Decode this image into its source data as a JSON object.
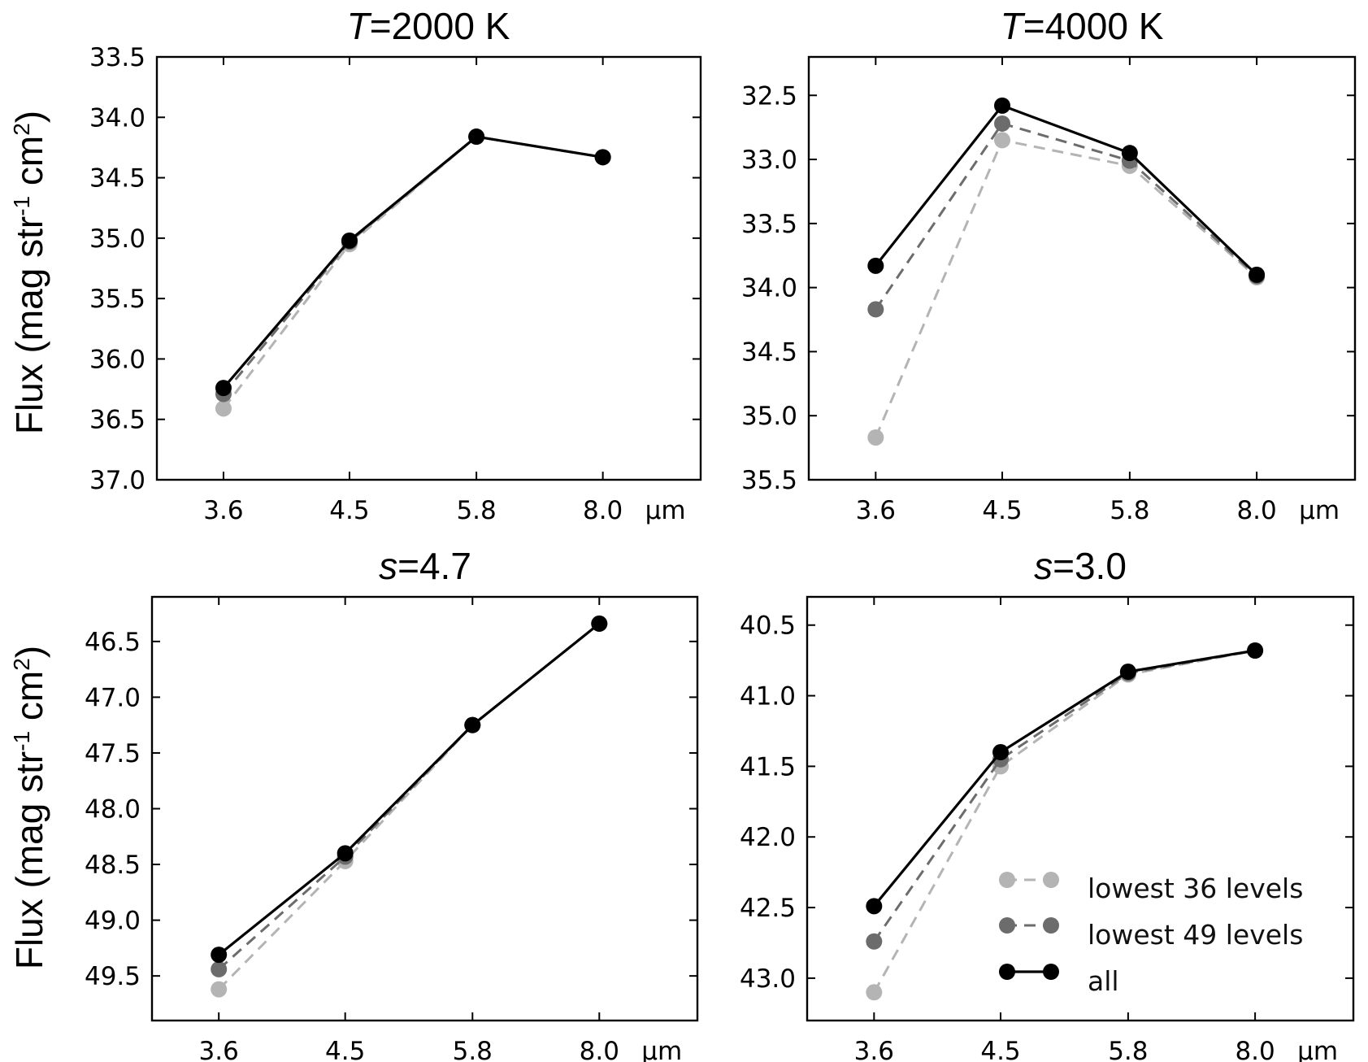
{
  "figure": {
    "ylabel": {
      "main": "Flux (mag str",
      "sup1": "-1",
      "mid": " cm",
      "sup2": "2",
      "end": ")"
    },
    "xunit": "μm"
  },
  "legend": {
    "items": [
      {
        "label": "lowest 36 levels",
        "series": "lowest36"
      },
      {
        "label": "lowest 49 levels",
        "series": "lowest49"
      },
      {
        "label": "all",
        "series": "all"
      }
    ]
  },
  "styles": {
    "lowest36": {
      "color": "#b4b4b4",
      "dash": "14,9"
    },
    "lowest49": {
      "color": "#6c6c6c",
      "dash": "14,9"
    },
    "all": {
      "color": "#000000",
      "dash": ""
    }
  },
  "chart_data": [
    {
      "type": "line",
      "title_var": "T",
      "title_rest": "=2000 K",
      "categories": [
        "3.6",
        "4.5",
        "5.8",
        "8.0"
      ],
      "y_inverted": true,
      "ylim": [
        33.5,
        37.0
      ],
      "yticks": [
        "33.5",
        "34.0",
        "34.5",
        "35.0",
        "35.5",
        "36.0",
        "36.5",
        "37.0"
      ],
      "series": [
        {
          "name": "lowest 36 levels",
          "key": "lowest36",
          "values": [
            36.41,
            35.05,
            34.16,
            34.33
          ]
        },
        {
          "name": "lowest 49 levels",
          "key": "lowest49",
          "values": [
            36.29,
            35.03,
            34.16,
            34.33
          ]
        },
        {
          "name": "all",
          "key": "all",
          "values": [
            36.24,
            35.02,
            34.16,
            34.33
          ]
        }
      ]
    },
    {
      "type": "line",
      "title_var": "T",
      "title_rest": "=4000 K",
      "categories": [
        "3.6",
        "4.5",
        "5.8",
        "8.0"
      ],
      "y_inverted": true,
      "ylim": [
        32.2,
        35.5
      ],
      "yticks": [
        "32.5",
        "33.0",
        "33.5",
        "34.0",
        "34.5",
        "35.0",
        "35.5"
      ],
      "series": [
        {
          "name": "lowest 36 levels",
          "key": "lowest36",
          "values": [
            35.17,
            32.85,
            33.05,
            33.92
          ]
        },
        {
          "name": "lowest 49 levels",
          "key": "lowest49",
          "values": [
            34.17,
            32.72,
            33.01,
            33.91
          ]
        },
        {
          "name": "all",
          "key": "all",
          "values": [
            33.83,
            32.58,
            32.95,
            33.9
          ]
        }
      ]
    },
    {
      "type": "line",
      "title_var": "s",
      "title_rest": "=4.7",
      "categories": [
        "3.6",
        "4.5",
        "5.8",
        "8.0"
      ],
      "y_inverted": true,
      "ylim": [
        46.1,
        49.9
      ],
      "yticks": [
        "46.5",
        "47.0",
        "47.5",
        "48.0",
        "48.5",
        "49.0",
        "49.5"
      ],
      "series": [
        {
          "name": "lowest 36 levels",
          "key": "lowest36",
          "values": [
            49.62,
            48.47,
            47.25,
            46.34
          ]
        },
        {
          "name": "lowest 49 levels",
          "key": "lowest49",
          "values": [
            49.44,
            48.43,
            47.25,
            46.34
          ]
        },
        {
          "name": "all",
          "key": "all",
          "values": [
            49.31,
            48.4,
            47.25,
            46.34
          ]
        }
      ]
    },
    {
      "type": "line",
      "title_var": "s",
      "title_rest": "=3.0",
      "categories": [
        "3.6",
        "4.5",
        "5.8",
        "8.0"
      ],
      "y_inverted": true,
      "ylim": [
        40.3,
        43.3
      ],
      "yticks": [
        "40.5",
        "41.0",
        "41.5",
        "42.0",
        "42.5",
        "43.0"
      ],
      "series": [
        {
          "name": "lowest 36 levels",
          "key": "lowest36",
          "values": [
            43.1,
            41.5,
            40.85,
            40.68
          ]
        },
        {
          "name": "lowest 49 levels",
          "key": "lowest49",
          "values": [
            42.74,
            41.45,
            40.84,
            40.68
          ]
        },
        {
          "name": "all",
          "key": "all",
          "values": [
            42.49,
            41.4,
            40.83,
            40.68
          ]
        }
      ]
    }
  ]
}
